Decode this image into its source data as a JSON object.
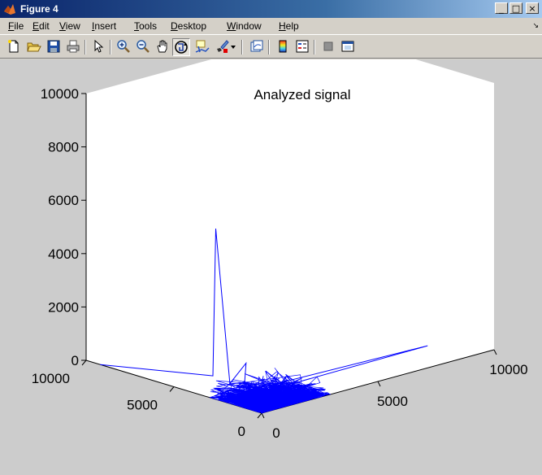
{
  "window": {
    "title": "Figure 4",
    "controls": {
      "minimize": "_",
      "maximize": "□",
      "close": "×"
    }
  },
  "menu": {
    "items": [
      {
        "underline": "F",
        "rest": "ile"
      },
      {
        "underline": "E",
        "rest": "dit"
      },
      {
        "underline": "V",
        "rest": "iew"
      },
      {
        "underline": "I",
        "rest": "nsert"
      },
      {
        "underline": "T",
        "rest": "ools"
      },
      {
        "underline": "D",
        "rest": "esktop"
      },
      {
        "underline": "W",
        "rest": "indow"
      },
      {
        "underline": "H",
        "rest": "elp"
      }
    ],
    "overflow_arrow": "↘"
  },
  "toolbar": {
    "icons": [
      "new-figure-icon",
      "open-file-icon",
      "save-icon",
      "print-icon",
      "edit-plot-arrow-icon",
      "zoom-in-icon",
      "zoom-out-icon",
      "pan-hand-icon",
      "rotate-3d-icon",
      "data-cursor-icon",
      "brush-icon",
      "brush-dropdown-icon",
      "link-plot-icon",
      "colorbar-icon",
      "legend-icon",
      "hide-plot-tools-icon",
      "show-plot-tools-icon"
    ]
  },
  "chart_data": {
    "type": "line",
    "title": "Analyzed signal",
    "projection": "3d",
    "xlabel": "",
    "ylabel": "",
    "zlabel": "",
    "x_ticks": [
      "0",
      "5000",
      "10000"
    ],
    "y_ticks": [
      "0",
      "5000",
      "10000"
    ],
    "z_ticks": [
      "0",
      "2000",
      "4000",
      "6000",
      "8000",
      "10000"
    ],
    "xlim": [
      0,
      10000
    ],
    "ylim": [
      0,
      10000
    ],
    "zlim": [
      0,
      10000
    ],
    "grid": false,
    "series_color": "#0000ff",
    "series": [
      {
        "points": [
          [
            0,
            9200,
            0
          ],
          [
            1300,
            4500,
            200
          ],
          [
            1800,
            5000,
            5500
          ],
          [
            900,
            3000,
            300
          ],
          [
            2200,
            3800,
            600
          ],
          [
            1200,
            2600,
            0
          ],
          [
            8800,
            2200,
            0
          ],
          [
            600,
            1800,
            100
          ],
          [
            2500,
            1800,
            300
          ],
          [
            400,
            900,
            200
          ],
          [
            1500,
            1100,
            100
          ],
          [
            300,
            400,
            300
          ],
          [
            0,
            0,
            0
          ]
        ]
      }
    ]
  }
}
